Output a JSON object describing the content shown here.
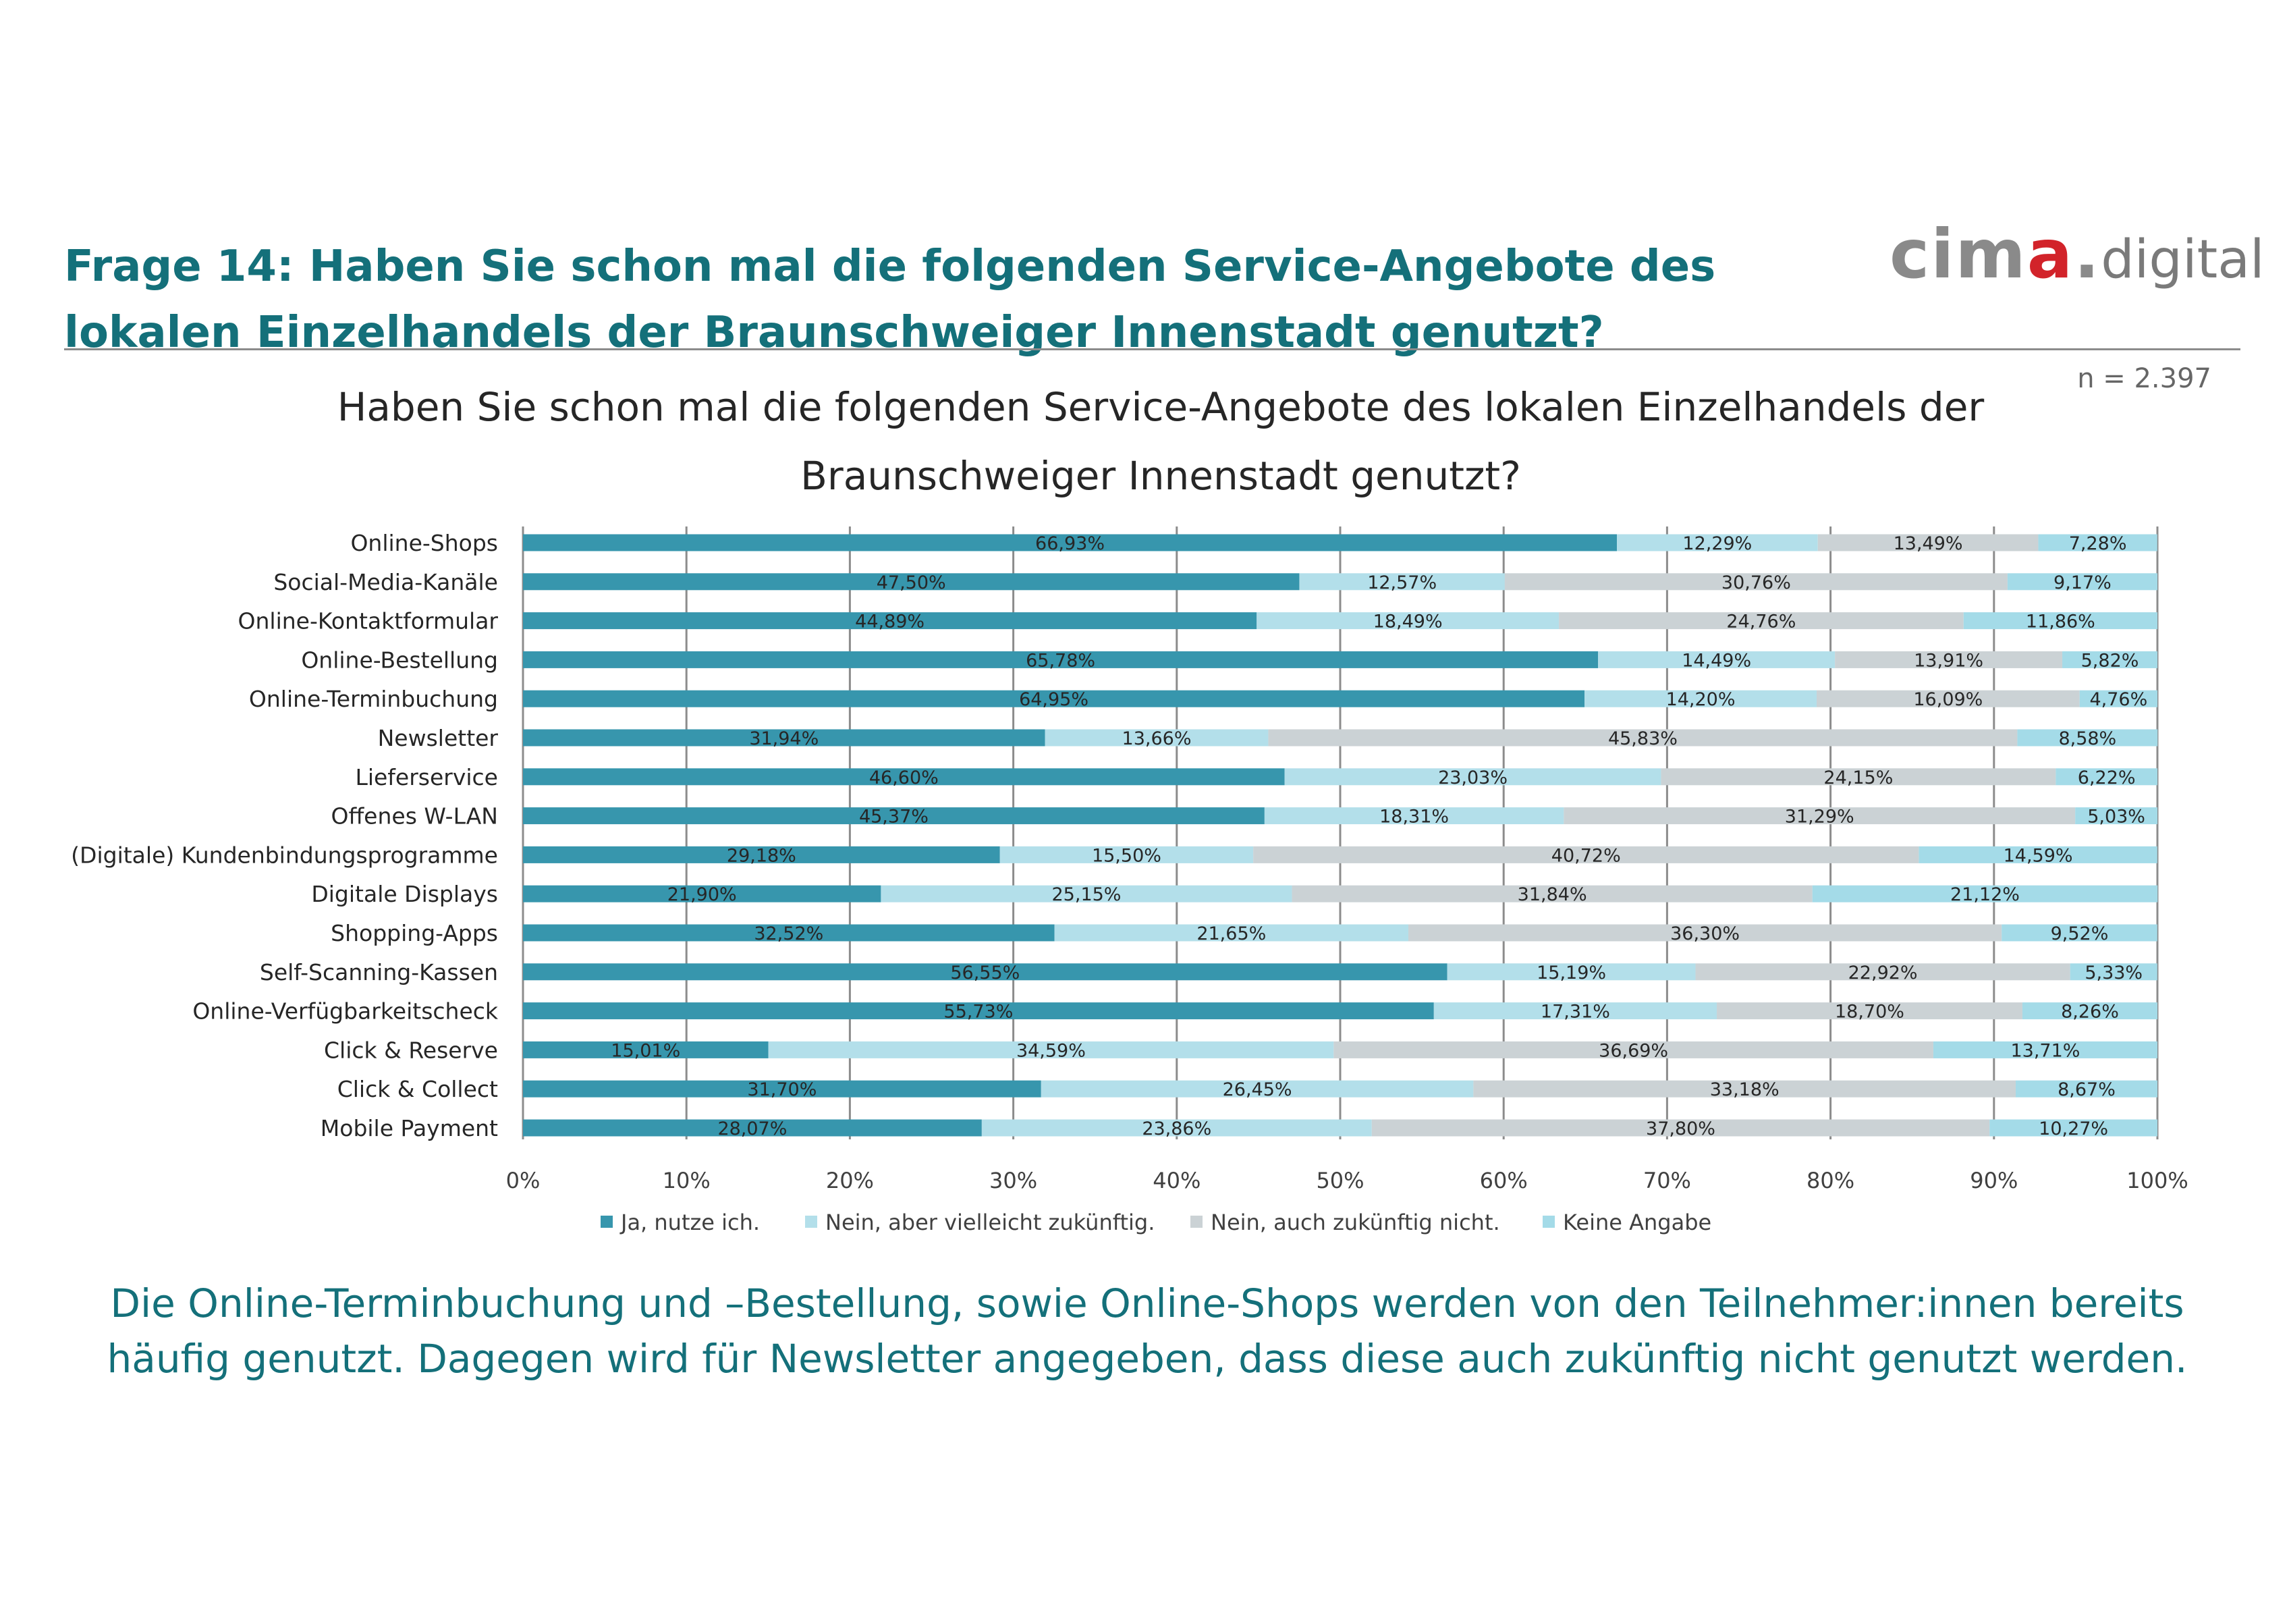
{
  "header": {
    "title": "Frage 14: Haben Sie schon mal die folgenden Service-Angebote des lokalen Einzelhandels der Braunschweiger Innenstadt genutzt?",
    "logo": {
      "brand": "cima.",
      "suffix": "digital"
    },
    "sample_size": "n = 2.397"
  },
  "colors": {
    "ja": "#3796ad",
    "vielleicht": "#b3dfea",
    "nicht": "#cbd2d5",
    "keine": "#a4dbe8",
    "heading": "#14707a",
    "gridline": "#8c8c8c"
  },
  "chart_data": {
    "type": "bar",
    "orientation": "horizontal",
    "stacked": "percent",
    "title": "Haben Sie schon mal die folgenden Service-Angebote des lokalen Einzelhandels der Braunschweiger Innenstadt genutzt?",
    "categories": [
      "Online-Shops",
      "Social-Media-Kanäle",
      "Online-Kontaktformular",
      "Online-Bestellung",
      "Online-Terminbuchung",
      "Newsletter",
      "Lieferservice",
      "Offenes W-LAN",
      "(Digitale) Kundenbindungsprogramme",
      "Digitale Displays",
      "Shopping-Apps",
      "Self-Scanning-Kassen",
      "Online-Verfügbarkeitscheck",
      "Click & Reserve",
      "Click & Collect",
      "Mobile Payment"
    ],
    "series": [
      {
        "name": "Ja, nutze ich.",
        "color": "#3796ad",
        "values": [
          66.93,
          47.5,
          44.89,
          65.78,
          64.95,
          31.94,
          46.6,
          45.37,
          29.18,
          21.9,
          32.52,
          56.55,
          55.73,
          15.01,
          31.7,
          28.07
        ],
        "labels": [
          "66,93%",
          "47,50%",
          "44,89%",
          "65,78%",
          "64,95%",
          "31,94%",
          "46,60%",
          "45,37%",
          "29,18%",
          "21,90%",
          "32,52%",
          "56,55%",
          "55,73%",
          "15,01%",
          "31,70%",
          "28,07%"
        ]
      },
      {
        "name": "Nein, aber vielleicht zukünftig.",
        "color": "#b3dfea",
        "values": [
          12.29,
          12.57,
          18.49,
          14.49,
          14.2,
          13.66,
          23.03,
          18.31,
          15.5,
          25.15,
          21.65,
          15.19,
          17.31,
          34.59,
          26.45,
          23.86
        ],
        "labels": [
          "12,29%",
          "12,57%",
          "18,49%",
          "14,49%",
          "14,20%",
          "13,66%",
          "23,03%",
          "18,31%",
          "15,50%",
          "25,15%",
          "21,65%",
          "15,19%",
          "17,31%",
          "34,59%",
          "26,45%",
          "23,86%"
        ]
      },
      {
        "name": "Nein, auch zukünftig nicht.",
        "color": "#cbd2d5",
        "values": [
          13.49,
          30.76,
          24.76,
          13.91,
          16.09,
          45.83,
          24.15,
          31.29,
          40.72,
          31.84,
          36.3,
          22.92,
          18.7,
          36.69,
          33.18,
          37.8
        ],
        "labels": [
          "13,49%",
          "30,76%",
          "24,76%",
          "13,91%",
          "16,09%",
          "45,83%",
          "24,15%",
          "31,29%",
          "40,72%",
          "31,84%",
          "36,30%",
          "22,92%",
          "18,70%",
          "36,69%",
          "33,18%",
          "37,80%"
        ]
      },
      {
        "name": "Keine Angabe",
        "color": "#a4dbe8",
        "values": [
          7.28,
          9.17,
          11.86,
          5.82,
          4.76,
          8.58,
          6.22,
          5.03,
          14.59,
          21.12,
          9.52,
          5.33,
          8.26,
          13.71,
          8.67,
          10.27
        ],
        "labels": [
          "7,28%",
          "9,17%",
          "11,86%",
          "5,82%",
          "4,76%",
          "8,58%",
          "6,22%",
          "5,03%",
          "14,59%",
          "21,12%",
          "9,52%",
          "5,33%",
          "8,26%",
          "13,71%",
          "8,67%",
          "10,27%"
        ]
      }
    ],
    "xlim": [
      0,
      100
    ],
    "x_ticks": [
      "0%",
      "10%",
      "20%",
      "30%",
      "40%",
      "50%",
      "60%",
      "70%",
      "80%",
      "90%",
      "100%"
    ],
    "grid": true,
    "legend_position": "bottom"
  },
  "summary": "Die Online-Terminbuchung und –Bestellung, sowie Online-Shops werden von den Teilnehmer:innen bereits häufig genutzt. Dagegen wird für Newsletter angegeben, dass diese auch zukünftig nicht genutzt werden."
}
